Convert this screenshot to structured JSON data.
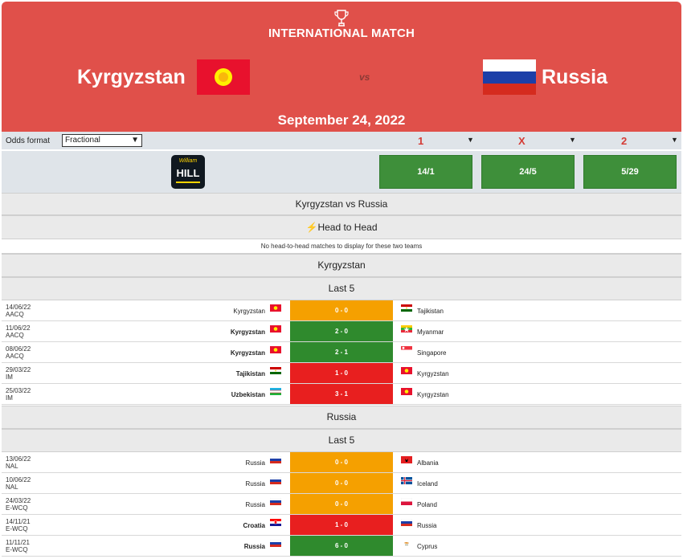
{
  "header": {
    "competition": "INTERNATIONAL MATCH",
    "home_team": "Kyrgyzstan",
    "away_team": "Russia",
    "vs": "vs",
    "date": "September 24, 2022",
    "brand_color": "#e0504a"
  },
  "odds": {
    "format_label": "Odds format",
    "format_value": "Fractional",
    "col1": "1",
    "colx": "X",
    "col2": "2",
    "bookmaker_line1": "William",
    "bookmaker_line2": "HILL",
    "home": "14/1",
    "draw": "24/5",
    "away": "5/29"
  },
  "sections": {
    "matchup": "Kyrgyzstan vs Russia",
    "h2h": "Head to Head",
    "h2h_note": "No head-to-head matches to display for these two teams",
    "home_title": "Kyrgyzstan",
    "away_title": "Russia",
    "last5_label": "Last 5"
  },
  "home_last5": [
    {
      "date": "14/06/22",
      "comp": "AACQ",
      "home": "Kyrgyzstan",
      "home_flag": "kyrgyzstan",
      "score": "0 - 0",
      "away": "Tajikistan",
      "away_flag": "tajikistan",
      "result": "draw",
      "bold": "none"
    },
    {
      "date": "11/06/22",
      "comp": "AACQ",
      "home": "Kyrgyzstan",
      "home_flag": "kyrgyzstan",
      "score": "2 - 0",
      "away": "Myanmar",
      "away_flag": "myanmar",
      "result": "win",
      "bold": "home"
    },
    {
      "date": "08/06/22",
      "comp": "AACQ",
      "home": "Kyrgyzstan",
      "home_flag": "kyrgyzstan",
      "score": "2 - 1",
      "away": "Singapore",
      "away_flag": "singapore",
      "result": "win",
      "bold": "home"
    },
    {
      "date": "29/03/22",
      "comp": "IM",
      "home": "Tajikistan",
      "home_flag": "tajikistan",
      "score": "1 - 0",
      "away": "Kyrgyzstan",
      "away_flag": "kyrgyzstan",
      "result": "loss",
      "bold": "home"
    },
    {
      "date": "25/03/22",
      "comp": "IM",
      "home": "Uzbekistan",
      "home_flag": "uzbekistan",
      "score": "3 - 1",
      "away": "Kyrgyzstan",
      "away_flag": "kyrgyzstan",
      "result": "loss",
      "bold": "home"
    }
  ],
  "away_last5": [
    {
      "date": "13/06/22",
      "comp": "NAL",
      "home": "Russia",
      "home_flag": "russia",
      "score": "0 - 0",
      "away": "Albania",
      "away_flag": "albania",
      "result": "draw",
      "bold": "none"
    },
    {
      "date": "10/06/22",
      "comp": "NAL",
      "home": "Russia",
      "home_flag": "russia",
      "score": "0 - 0",
      "away": "Iceland",
      "away_flag": "iceland",
      "result": "draw",
      "bold": "none"
    },
    {
      "date": "24/03/22",
      "comp": "E-WCQ",
      "home": "Russia",
      "home_flag": "russia",
      "score": "0 - 0",
      "away": "Poland",
      "away_flag": "poland",
      "result": "draw",
      "bold": "none"
    },
    {
      "date": "14/11/21",
      "comp": "E-WCQ",
      "home": "Croatia",
      "home_flag": "croatia",
      "score": "1 - 0",
      "away": "Russia",
      "away_flag": "russia",
      "result": "loss",
      "bold": "home"
    },
    {
      "date": "11/11/21",
      "comp": "E-WCQ",
      "home": "Russia",
      "home_flag": "russia",
      "score": "6 - 0",
      "away": "Cyprus",
      "away_flag": "cyprus",
      "result": "win",
      "bold": "home"
    }
  ]
}
